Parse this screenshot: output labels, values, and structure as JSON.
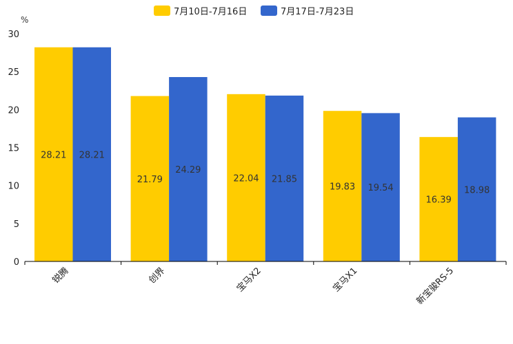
{
  "chart_data": {
    "type": "bar",
    "title": "",
    "xlabel": "",
    "ylabel": "%",
    "ylim": [
      0,
      30
    ],
    "yticks": [
      0,
      5,
      10,
      15,
      20,
      25,
      30
    ],
    "categories": [
      "锐腾",
      "创界",
      "宝马X2",
      "宝马X1",
      "新宝骏RS-5"
    ],
    "series": [
      {
        "name": "7月10日-7月16日",
        "color": "#ffcc00",
        "values": [
          28.21,
          21.79,
          22.04,
          19.83,
          16.39
        ]
      },
      {
        "name": "7月17日-7月23日",
        "color": "#3366cc",
        "values": [
          28.21,
          24.29,
          21.85,
          19.54,
          18.98
        ]
      }
    ],
    "legend_position": "top-center",
    "grid": false
  }
}
